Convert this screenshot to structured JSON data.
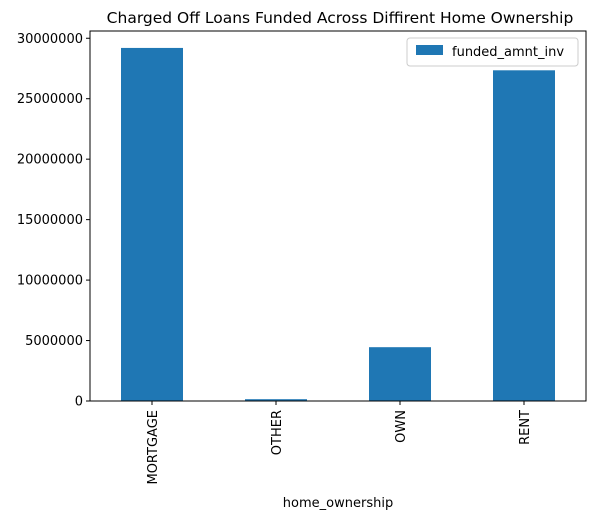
{
  "chart_data": {
    "type": "bar",
    "title": "Charged Off Loans Funded Across Diffirent Home Ownership",
    "xlabel": "home_ownership",
    "ylabel": "",
    "categories": [
      "MORTGAGE",
      "OTHER",
      "OWN",
      "RENT"
    ],
    "series": [
      {
        "name": "funded_amnt_inv",
        "values": [
          29200000,
          150000,
          4450000,
          27350000
        ],
        "color": "#1f77b4"
      }
    ],
    "ylim": [
      0,
      30600000
    ],
    "yticks": [
      0,
      5000000,
      10000000,
      15000000,
      20000000,
      25000000,
      30000000
    ],
    "ytick_labels": [
      "0",
      "5000000",
      "10000000",
      "15000000",
      "20000000",
      "25000000",
      "30000000"
    ],
    "grid": false,
    "legend_position": "top-right"
  }
}
